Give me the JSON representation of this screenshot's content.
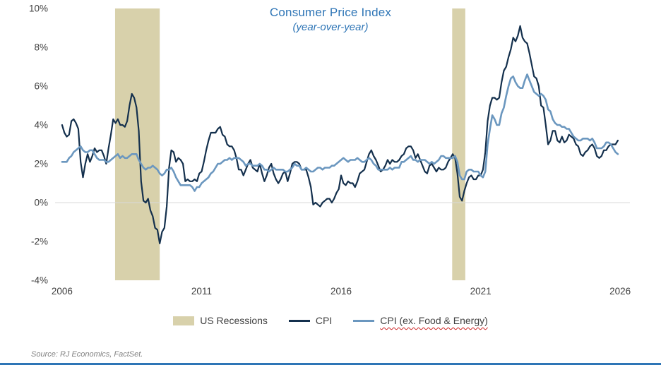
{
  "source": "Source: RJ Economics, FactSet.",
  "legend": {
    "recessions": "US Recessions",
    "cpi": "CPI",
    "core": "CPI (ex. Food & Energy)"
  },
  "chart_data": {
    "type": "line",
    "title": "Consumer Price Index",
    "subtitle": "(year-over-year)",
    "x_start": 2006,
    "x_step_months": 1,
    "xlim": [
      2005.75,
      2026.35
    ],
    "ylim": [
      -4,
      10
    ],
    "x_ticks": [
      2006,
      2011,
      2016,
      2021,
      2026
    ],
    "y_ticks": [
      -4,
      -2,
      0,
      2,
      4,
      6,
      8,
      10
    ],
    "grid": "zero-line-only",
    "legend_position": "bottom",
    "recessions": [
      [
        2007.9,
        2009.5
      ],
      [
        2019.98,
        2020.45
      ]
    ],
    "colors": {
      "recession": "#d8d1ab",
      "cpi": "#14304d",
      "core": "#6b97bf",
      "title": "#2e75b6",
      "axis_text": "#404040",
      "zero_line": "#d9d9d9",
      "footer_bar": "#2e75b6"
    },
    "series": [
      {
        "name": "CPI",
        "color": "#14304d",
        "width": 2.2,
        "values": [
          4.0,
          3.6,
          3.4,
          3.5,
          4.2,
          4.3,
          4.1,
          3.8,
          2.1,
          1.3,
          2.0,
          2.5,
          2.1,
          2.4,
          2.8,
          2.6,
          2.7,
          2.7,
          2.4,
          2.0,
          2.8,
          3.5,
          4.3,
          4.1,
          4.3,
          4.0,
          4.0,
          3.9,
          4.2,
          5.0,
          5.6,
          5.4,
          4.9,
          3.7,
          1.1,
          0.1,
          0.0,
          0.2,
          -0.4,
          -0.7,
          -1.3,
          -1.4,
          -2.1,
          -1.5,
          -1.3,
          -0.2,
          1.8,
          2.7,
          2.6,
          2.1,
          2.3,
          2.2,
          2.0,
          1.1,
          1.2,
          1.1,
          1.1,
          1.2,
          1.1,
          1.5,
          1.6,
          2.1,
          2.7,
          3.2,
          3.6,
          3.6,
          3.6,
          3.8,
          3.9,
          3.5,
          3.4,
          3.0,
          2.9,
          2.9,
          2.7,
          2.3,
          1.7,
          1.7,
          1.4,
          1.7,
          2.0,
          2.2,
          1.8,
          1.7,
          1.6,
          2.0,
          1.5,
          1.1,
          1.4,
          1.8,
          2.0,
          1.5,
          1.2,
          1.0,
          1.2,
          1.5,
          1.6,
          1.1,
          1.5,
          2.0,
          2.1,
          2.1,
          2.0,
          1.7,
          1.7,
          1.7,
          1.3,
          0.8,
          -0.1,
          0.0,
          -0.1,
          -0.2,
          0.0,
          0.1,
          0.2,
          0.2,
          0.0,
          0.2,
          0.5,
          0.7,
          1.4,
          1.0,
          0.9,
          1.1,
          1.0,
          1.0,
          0.8,
          1.1,
          1.5,
          1.6,
          1.7,
          2.1,
          2.5,
          2.7,
          2.4,
          2.2,
          1.9,
          1.6,
          1.7,
          1.9,
          2.2,
          2.0,
          2.2,
          2.1,
          2.1,
          2.2,
          2.4,
          2.5,
          2.8,
          2.9,
          2.9,
          2.7,
          2.3,
          2.5,
          2.2,
          1.9,
          1.6,
          1.5,
          1.9,
          2.0,
          1.8,
          1.6,
          1.8,
          1.7,
          1.7,
          1.8,
          2.1,
          2.3,
          2.5,
          2.3,
          1.5,
          0.3,
          0.1,
          0.6,
          1.0,
          1.3,
          1.4,
          1.2,
          1.2,
          1.4,
          1.4,
          1.7,
          2.6,
          4.2,
          5.0,
          5.4,
          5.4,
          5.3,
          5.4,
          6.2,
          6.8,
          7.0,
          7.5,
          7.9,
          8.5,
          8.3,
          8.6,
          9.1,
          8.5,
          8.3,
          8.2,
          7.7,
          7.1,
          6.5,
          6.4,
          6.0,
          5.0,
          4.9,
          4.0,
          3.0,
          3.2,
          3.7,
          3.7,
          3.2,
          3.1,
          3.4,
          3.1,
          3.2,
          3.5,
          3.4,
          3.3,
          3.0,
          2.9,
          2.5,
          2.4,
          2.6,
          2.7,
          2.9,
          3.0,
          2.8,
          2.4,
          2.3,
          2.4,
          2.7,
          2.7,
          2.9,
          3.0,
          3.0,
          3.0,
          3.2
        ]
      },
      {
        "name": "CPI (ex. Food & Energy)",
        "color": "#6b97bf",
        "width": 2.6,
        "values": [
          2.1,
          2.1,
          2.1,
          2.3,
          2.4,
          2.6,
          2.7,
          2.8,
          2.9,
          2.7,
          2.6,
          2.6,
          2.7,
          2.7,
          2.5,
          2.3,
          2.2,
          2.2,
          2.2,
          2.1,
          2.1,
          2.2,
          2.3,
          2.4,
          2.5,
          2.3,
          2.4,
          2.3,
          2.3,
          2.4,
          2.5,
          2.5,
          2.5,
          2.2,
          2.0,
          1.8,
          1.7,
          1.8,
          1.8,
          1.9,
          1.8,
          1.7,
          1.5,
          1.4,
          1.5,
          1.7,
          1.7,
          1.8,
          1.6,
          1.3,
          1.1,
          0.9,
          0.9,
          0.9,
          0.9,
          0.9,
          0.8,
          0.6,
          0.8,
          0.8,
          1.0,
          1.1,
          1.2,
          1.3,
          1.5,
          1.6,
          1.8,
          2.0,
          2.0,
          2.1,
          2.2,
          2.2,
          2.3,
          2.2,
          2.3,
          2.3,
          2.3,
          2.2,
          2.1,
          1.9,
          2.0,
          2.0,
          1.9,
          1.9,
          1.9,
          2.0,
          1.9,
          1.7,
          1.7,
          1.6,
          1.7,
          1.8,
          1.7,
          1.7,
          1.7,
          1.7,
          1.6,
          1.6,
          1.7,
          1.8,
          2.0,
          1.9,
          1.9,
          1.7,
          1.7,
          1.8,
          1.7,
          1.6,
          1.6,
          1.7,
          1.8,
          1.8,
          1.7,
          1.8,
          1.8,
          1.8,
          1.9,
          1.9,
          2.0,
          2.1,
          2.2,
          2.3,
          2.2,
          2.1,
          2.2,
          2.2,
          2.2,
          2.3,
          2.2,
          2.1,
          2.1,
          2.2,
          2.3,
          2.2,
          2.0,
          1.9,
          1.7,
          1.7,
          1.7,
          1.7,
          1.7,
          1.8,
          1.7,
          1.8,
          1.8,
          1.8,
          2.1,
          2.1,
          2.2,
          2.3,
          2.4,
          2.2,
          2.2,
          2.1,
          2.2,
          2.2,
          2.2,
          2.1,
          2.0,
          2.1,
          2.0,
          2.1,
          2.2,
          2.4,
          2.4,
          2.3,
          2.3,
          2.3,
          2.3,
          2.4,
          2.1,
          1.4,
          1.2,
          1.2,
          1.6,
          1.7,
          1.7,
          1.6,
          1.6,
          1.6,
          1.4,
          1.3,
          1.6,
          3.0,
          3.8,
          4.5,
          4.3,
          4.0,
          4.0,
          4.6,
          4.9,
          5.5,
          6.0,
          6.4,
          6.5,
          6.2,
          6.0,
          5.9,
          5.9,
          6.3,
          6.6,
          6.3,
          6.0,
          5.7,
          5.6,
          5.5,
          5.6,
          5.5,
          5.3,
          4.8,
          4.7,
          4.3,
          4.1,
          4.0,
          4.0,
          3.9,
          3.9,
          3.8,
          3.8,
          3.6,
          3.4,
          3.3,
          3.2,
          3.2,
          3.3,
          3.3,
          3.3,
          3.2,
          3.3,
          3.1,
          2.8,
          2.8,
          2.8,
          2.9,
          3.1,
          3.1,
          3.0,
          2.8,
          2.6,
          2.5
        ]
      }
    ]
  }
}
